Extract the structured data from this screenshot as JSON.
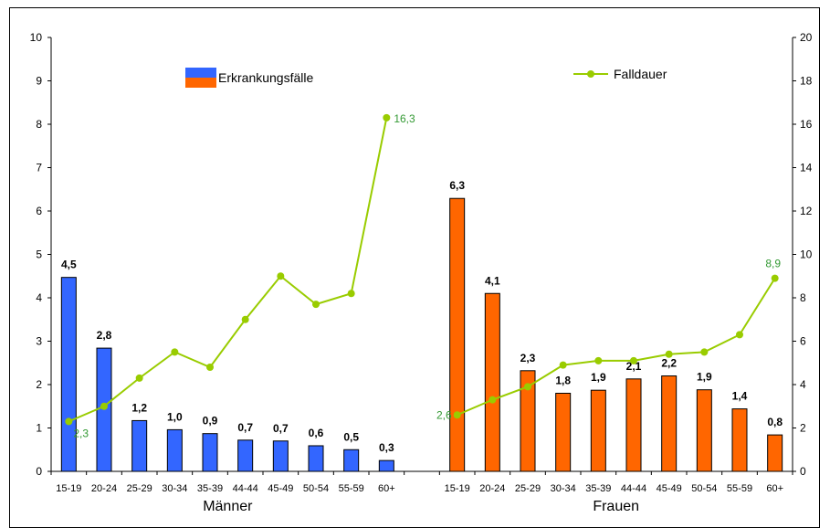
{
  "chart_data": {
    "type": "bar",
    "groups": [
      {
        "name": "Männer",
        "categories": [
          "15-19",
          "20-24",
          "25-29",
          "30-34",
          "35-39",
          "44-44",
          "45-49",
          "50-54",
          "55-59",
          "60+"
        ],
        "bar_values": [
          4.5,
          2.8,
          1.2,
          1.0,
          0.9,
          0.7,
          0.7,
          0.6,
          0.5,
          0.3
        ],
        "bar_labels": [
          "4,5",
          "2,8",
          "1,2",
          "1,0",
          "0,9",
          "0,7",
          "0,7",
          "0,6",
          "0,5",
          "0,3"
        ],
        "bar_values_exact": [
          4.47,
          2.84,
          1.17,
          0.96,
          0.87,
          0.72,
          0.7,
          0.59,
          0.5,
          0.25
        ],
        "line_values": [
          2.3,
          3.0,
          4.3,
          5.5,
          4.8,
          7.0,
          9.0,
          7.7,
          8.2,
          16.3
        ],
        "line_labels": {
          "0": "2,3",
          "9": "16,3"
        },
        "bar_color": "#3366ff"
      },
      {
        "name": "Frauen",
        "categories": [
          "15-19",
          "20-24",
          "25-29",
          "30-34",
          "35-39",
          "44-44",
          "45-49",
          "50-54",
          "55-59",
          "60+"
        ],
        "bar_values": [
          6.3,
          4.1,
          2.3,
          1.8,
          1.9,
          2.1,
          2.2,
          1.9,
          1.4,
          0.8
        ],
        "bar_labels": [
          "6,3",
          "4,1",
          "2,3",
          "1,8",
          "1,9",
          "2,1",
          "2,2",
          "1,9",
          "1,4",
          "0,8"
        ],
        "bar_values_exact": [
          6.29,
          4.1,
          2.32,
          1.8,
          1.87,
          2.13,
          2.2,
          1.88,
          1.44,
          0.84
        ],
        "line_values": [
          2.6,
          3.3,
          3.9,
          4.9,
          5.1,
          5.1,
          5.4,
          5.5,
          6.3,
          8.9
        ],
        "line_labels": {
          "0": "2,6",
          "9": "8,9"
        },
        "bar_color": "#ff6600"
      }
    ],
    "y_left": {
      "min": 0,
      "max": 10,
      "step": 1
    },
    "y_right": {
      "min": 0,
      "max": 20,
      "step": 2
    },
    "legend": [
      {
        "label": "Erkrankungsfälle",
        "type": "bar",
        "colors": [
          "#3366ff",
          "#ff6600"
        ]
      },
      {
        "label": "Falldauer",
        "type": "line",
        "color": "#99cc00"
      }
    ],
    "line_color": "#99cc00",
    "line_label_color": "#339933",
    "grid": false
  }
}
